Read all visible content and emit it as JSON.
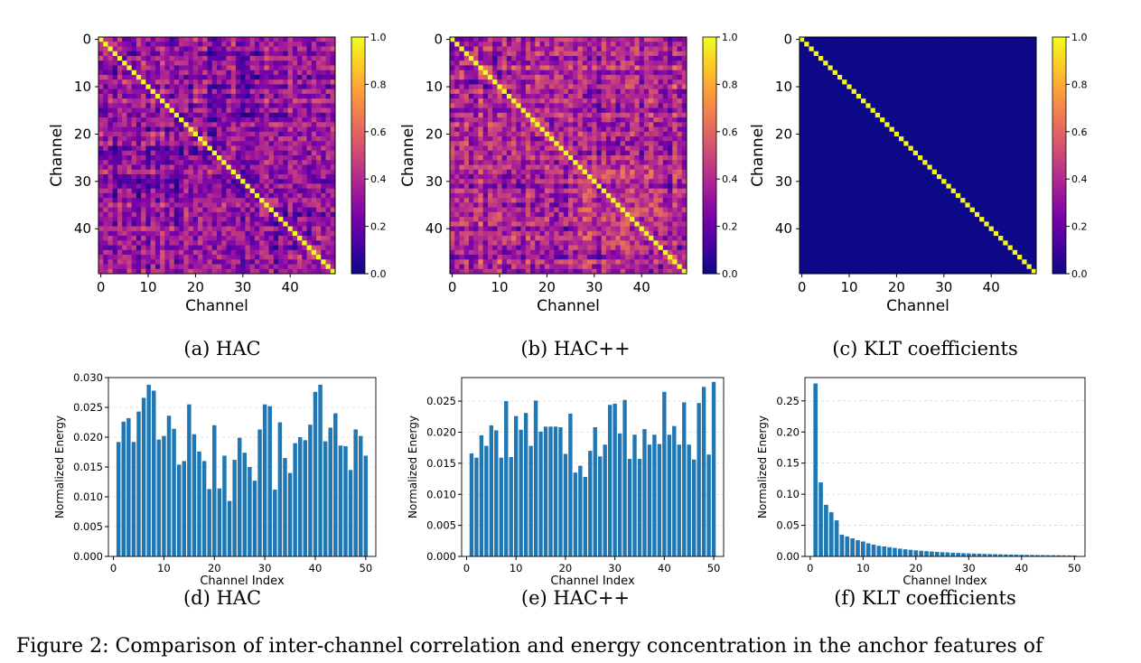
{
  "figure_caption": "Figure 2: Comparison of inter-channel correlation and energy concentration in the anchor features of",
  "heatmap_colorbar": {
    "min": 0.0,
    "max": 1.0,
    "ticks": [
      "0.0",
      "0.2",
      "0.4",
      "0.6",
      "0.8",
      "1.0"
    ],
    "colormap": "plasma",
    "colors": [
      "#0d0887",
      "#46039f",
      "#7201a8",
      "#9c179e",
      "#bd3786",
      "#d8576b",
      "#ed7953",
      "#fb9f3a",
      "#fdca26",
      "#f0f921"
    ]
  },
  "bar_color": "#1f77b4",
  "chart_data": [
    {
      "id": "hm_hac",
      "type": "heatmap",
      "caption": "(a) HAC",
      "xlabel": "Channel",
      "ylabel": "Channel",
      "size": 50,
      "xticks": [
        "0",
        "10",
        "20",
        "30",
        "40"
      ],
      "yticks": [
        "0",
        "10",
        "20",
        "30",
        "40"
      ],
      "diagonal": 1.0,
      "off_diagonal_range": [
        0.0,
        0.65
      ],
      "off_diagonal_mean": 0.3,
      "vmin": 0.0,
      "vmax": 1.0
    },
    {
      "id": "hm_hacpp",
      "type": "heatmap",
      "caption": "(b) HAC++",
      "xlabel": "Channel",
      "ylabel": "Channel",
      "size": 50,
      "xticks": [
        "0",
        "10",
        "20",
        "30",
        "40"
      ],
      "yticks": [
        "0",
        "10",
        "20",
        "30",
        "40"
      ],
      "diagonal": 1.0,
      "off_diagonal_range": [
        0.0,
        0.75
      ],
      "off_diagonal_mean": 0.38,
      "vmin": 0.0,
      "vmax": 1.0
    },
    {
      "id": "hm_klt",
      "type": "heatmap",
      "caption": "(c) KLT coefficients",
      "xlabel": "Channel",
      "ylabel": "Channel",
      "size": 50,
      "xticks": [
        "0",
        "10",
        "20",
        "30",
        "40"
      ],
      "yticks": [
        "0",
        "10",
        "20",
        "30",
        "40"
      ],
      "diagonal": 1.0,
      "off_diagonal_range": [
        0.0,
        0.0
      ],
      "off_diagonal_mean": 0.0,
      "vmin": 0.0,
      "vmax": 1.0
    },
    {
      "id": "bar_hac",
      "type": "bar",
      "caption": "(d) HAC",
      "xlabel": "Channel Index",
      "ylabel": "Normalized Energy",
      "xlim": [
        -1,
        52
      ],
      "ylim": [
        0,
        0.03
      ],
      "xticks": [
        0,
        10,
        20,
        30,
        40,
        50
      ],
      "yticks": [
        "0.000",
        "0.005",
        "0.010",
        "0.015",
        "0.020",
        "0.025",
        "0.030"
      ],
      "ytick_values": [
        0,
        0.005,
        0.01,
        0.015,
        0.02,
        0.025,
        0.03
      ],
      "grid": "horizontal",
      "x": [
        1,
        2,
        3,
        4,
        5,
        6,
        7,
        8,
        9,
        10,
        11,
        12,
        13,
        14,
        15,
        16,
        17,
        18,
        19,
        20,
        21,
        22,
        23,
        24,
        25,
        26,
        27,
        28,
        29,
        30,
        31,
        32,
        33,
        34,
        35,
        36,
        37,
        38,
        39,
        40,
        41,
        42,
        43,
        44,
        45,
        46,
        47,
        48,
        49,
        50
      ],
      "values": [
        0.0192,
        0.0226,
        0.0232,
        0.0192,
        0.0243,
        0.0266,
        0.0288,
        0.0278,
        0.0196,
        0.0202,
        0.0236,
        0.0214,
        0.0154,
        0.016,
        0.0255,
        0.0205,
        0.0176,
        0.016,
        0.0113,
        0.022,
        0.0114,
        0.0169,
        0.0093,
        0.0162,
        0.0199,
        0.0174,
        0.015,
        0.0127,
        0.0213,
        0.0255,
        0.0252,
        0.0112,
        0.0225,
        0.0165,
        0.014,
        0.019,
        0.02,
        0.0195,
        0.0221,
        0.0276,
        0.0288,
        0.0193,
        0.0216,
        0.024,
        0.0186,
        0.0185,
        0.0145,
        0.0213,
        0.0202,
        0.0169
      ]
    },
    {
      "id": "bar_hacpp",
      "type": "bar",
      "caption": "(e) HAC++",
      "xlabel": "Channel Index",
      "ylabel": "Normalized Energy",
      "xlim": [
        -1,
        52
      ],
      "ylim": [
        0,
        0.0288
      ],
      "xticks": [
        0,
        10,
        20,
        30,
        40,
        50
      ],
      "yticks": [
        "0.000",
        "0.005",
        "0.010",
        "0.015",
        "0.020",
        "0.025"
      ],
      "ytick_values": [
        0,
        0.005,
        0.01,
        0.015,
        0.02,
        0.025
      ],
      "grid": "horizontal",
      "x": [
        1,
        2,
        3,
        4,
        5,
        6,
        7,
        8,
        9,
        10,
        11,
        12,
        13,
        14,
        15,
        16,
        17,
        18,
        19,
        20,
        21,
        22,
        23,
        24,
        25,
        26,
        27,
        28,
        29,
        30,
        31,
        32,
        33,
        34,
        35,
        36,
        37,
        38,
        39,
        40,
        41,
        42,
        43,
        44,
        45,
        46,
        47,
        48,
        49,
        50
      ],
      "values": [
        0.0166,
        0.0159,
        0.0195,
        0.0178,
        0.0211,
        0.0203,
        0.0159,
        0.025,
        0.016,
        0.0226,
        0.0204,
        0.0231,
        0.0178,
        0.0251,
        0.0201,
        0.0209,
        0.0209,
        0.0209,
        0.0208,
        0.0165,
        0.023,
        0.0135,
        0.0146,
        0.0128,
        0.017,
        0.0208,
        0.0161,
        0.018,
        0.0244,
        0.0246,
        0.0198,
        0.0252,
        0.0157,
        0.0196,
        0.0157,
        0.0205,
        0.018,
        0.0196,
        0.0181,
        0.0265,
        0.0196,
        0.021,
        0.018,
        0.0248,
        0.018,
        0.0156,
        0.0247,
        0.0273,
        0.0164,
        0.0281
      ]
    },
    {
      "id": "bar_klt",
      "type": "bar",
      "caption": "(f) KLT coefficients",
      "xlabel": "Channel Index",
      "ylabel": "Normalized Energy",
      "xlim": [
        -1,
        52
      ],
      "ylim": [
        0,
        0.2875
      ],
      "xticks": [
        0,
        10,
        20,
        30,
        40,
        50
      ],
      "yticks": [
        "0.00",
        "0.05",
        "0.10",
        "0.15",
        "0.20",
        "0.25"
      ],
      "ytick_values": [
        0,
        0.05,
        0.1,
        0.15,
        0.2,
        0.25
      ],
      "grid": "horizontal",
      "x": [
        1,
        2,
        3,
        4,
        5,
        6,
        7,
        8,
        9,
        10,
        11,
        12,
        13,
        14,
        15,
        16,
        17,
        18,
        19,
        20,
        21,
        22,
        23,
        24,
        25,
        26,
        27,
        28,
        29,
        30,
        31,
        32,
        33,
        34,
        35,
        36,
        37,
        38,
        39,
        40,
        41,
        42,
        43,
        44,
        45,
        46,
        47,
        48,
        49,
        50
      ],
      "values": [
        0.278,
        0.119,
        0.083,
        0.071,
        0.058,
        0.035,
        0.032,
        0.029,
        0.026,
        0.024,
        0.021,
        0.019,
        0.017,
        0.016,
        0.0148,
        0.0136,
        0.0125,
        0.0115,
        0.0106,
        0.0098,
        0.0091,
        0.0085,
        0.0079,
        0.0073,
        0.0068,
        0.0064,
        0.006,
        0.0056,
        0.0052,
        0.0049,
        0.0046,
        0.0043,
        0.004,
        0.0038,
        0.0036,
        0.0034,
        0.0032,
        0.003,
        0.0028,
        0.0027,
        0.0025,
        0.0024,
        0.0022,
        0.0021,
        0.002,
        0.0019,
        0.0018,
        0.0017,
        0.0016,
        0.0015
      ]
    }
  ]
}
